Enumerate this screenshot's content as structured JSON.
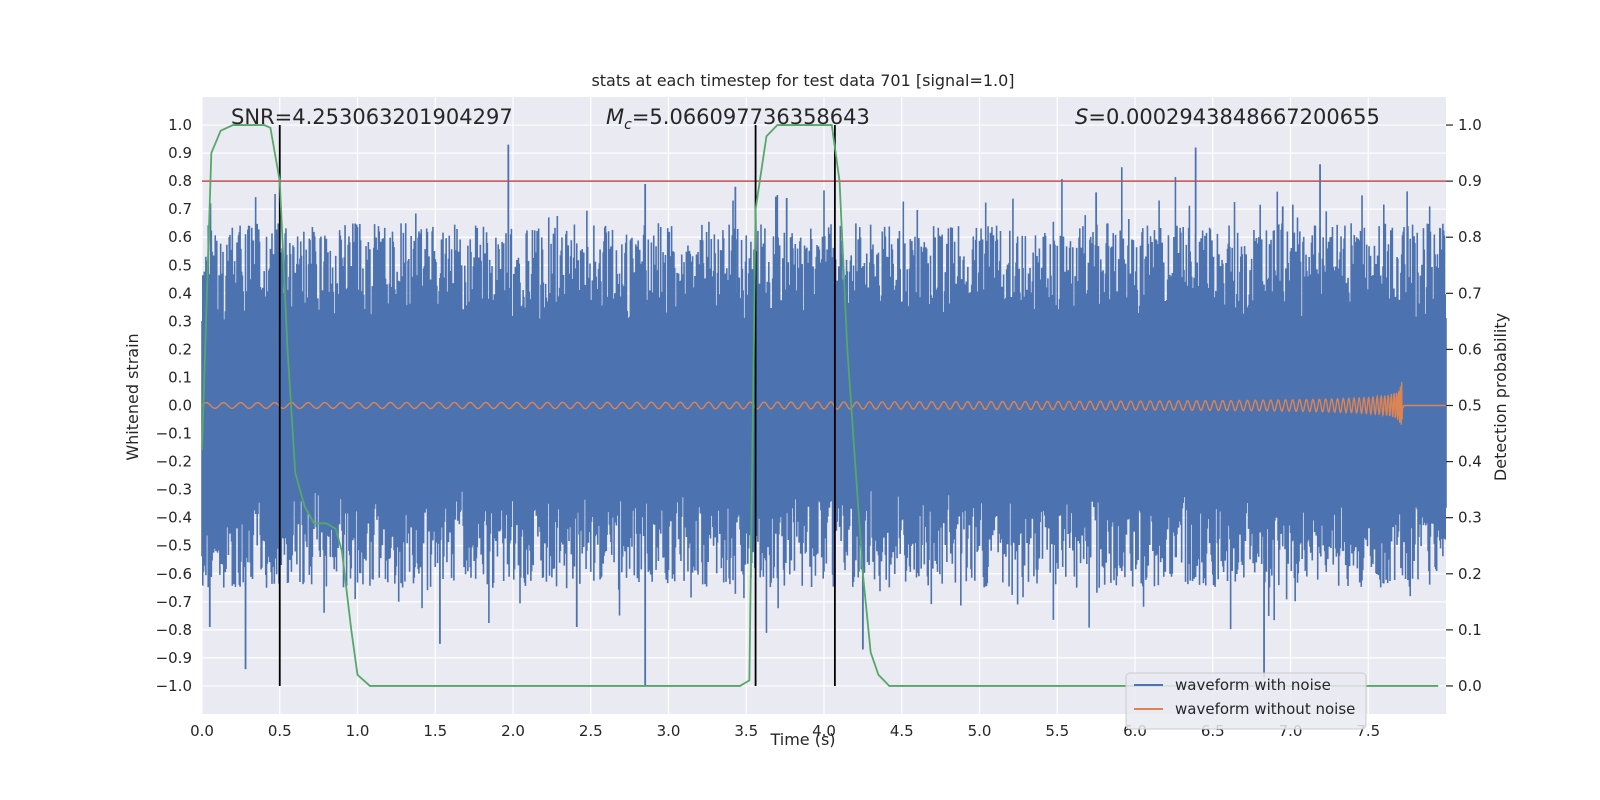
{
  "chart_data": {
    "type": "line",
    "title": "stats at each timestep for test data 701 [signal=1.0]",
    "xlabel": "Time (s)",
    "ylabel": "Whitened strain",
    "y2label": "Detection probability",
    "xlim": [
      0.0,
      8.0
    ],
    "ylim": [
      -1.1,
      1.1
    ],
    "y2lim": [
      -0.05,
      1.05
    ],
    "x_ticks": [
      0.0,
      0.5,
      1.0,
      1.5,
      2.0,
      2.5,
      3.0,
      3.5,
      4.0,
      4.5,
      5.0,
      5.5,
      6.0,
      6.5,
      7.0,
      7.5
    ],
    "x_tick_labels": [
      "0.0",
      "0.5",
      "1.0",
      "1.5",
      "2.0",
      "2.5",
      "3.0",
      "3.5",
      "4.0",
      "4.5",
      "5.0",
      "5.5",
      "6.0",
      "6.5",
      "7.0",
      "7.5"
    ],
    "y_ticks": [
      1.0,
      0.9,
      0.8,
      0.7,
      0.6,
      0.5,
      0.4,
      0.3,
      0.2,
      0.1,
      0.0,
      -0.1,
      -0.2,
      -0.3,
      -0.4,
      -0.5,
      -0.6,
      -0.7,
      -0.8,
      -0.9,
      -1.0
    ],
    "y_tick_labels": [
      "1.0",
      "0.9",
      "0.8",
      "0.7",
      "0.6",
      "0.5",
      "0.4",
      "0.3",
      "0.2",
      "0.1",
      "0.0",
      "−0.1",
      "−0.2",
      "−0.3",
      "−0.4",
      "−0.5",
      "−0.6",
      "−0.7",
      "−0.8",
      "−0.9",
      "−1.0"
    ],
    "y2_ticks": [
      1.0,
      0.9,
      0.8,
      0.7,
      0.6,
      0.5,
      0.4,
      0.3,
      0.2,
      0.1,
      0.0
    ],
    "y2_tick_labels": [
      "1.0",
      "0.9",
      "0.8",
      "0.7",
      "0.6",
      "0.5",
      "0.4",
      "0.3",
      "0.2",
      "0.1",
      "0.0"
    ],
    "grid": true,
    "annotations": {
      "snr": "SNR=4.253063201904297",
      "mc_symbol": "M",
      "mc_sub": "c",
      "mc_value": "=5.066097736358643",
      "s_symbol": "S",
      "s_value": "=0.0002943848667200655"
    },
    "threshold": {
      "axis": "y2",
      "value": 0.9,
      "color": "#c44e52"
    },
    "vertical_lines": [
      0.5,
      3.56,
      4.07
    ],
    "series": [
      {
        "name": "waveform with noise",
        "axis": "y",
        "color": "#4c72b0",
        "kind": "noise",
        "description_values": {
          "duration": 8.0,
          "typical_envelope": 0.45,
          "max": 0.93,
          "min": -1.0
        },
        "spikes": [
          {
            "t": 1.97,
            "v": 0.93
          },
          {
            "t": 6.39,
            "v": 0.92
          },
          {
            "t": 7.19,
            "v": 0.86
          },
          {
            "t": 2.85,
            "v": 0.79
          },
          {
            "t": 3.43,
            "v": 0.78
          },
          {
            "t": 5.75,
            "v": 0.76
          },
          {
            "t": 3.76,
            "v": 0.74
          },
          {
            "t": 6.95,
            "v": 0.71
          },
          {
            "t": 2.85,
            "v": -1.0
          },
          {
            "t": 6.83,
            "v": -0.97
          },
          {
            "t": 0.28,
            "v": -0.94
          },
          {
            "t": 4.25,
            "v": -0.87
          },
          {
            "t": 1.53,
            "v": -0.85
          },
          {
            "t": 2.41,
            "v": -0.79
          },
          {
            "t": 0.05,
            "v": -0.79
          }
        ]
      },
      {
        "name": "waveform without noise",
        "axis": "y",
        "color": "#dd8452",
        "kind": "chirp",
        "description_values": {
          "start_amplitude": 0.01,
          "peak_amplitude": 0.1,
          "merger_time": 7.72,
          "end_time": 8.0
        }
      },
      {
        "name": "detection probability",
        "axis": "y2",
        "color": "#55a868",
        "x": [
          0.0,
          0.06,
          0.12,
          0.2,
          0.3,
          0.4,
          0.44,
          0.5,
          0.55,
          0.6,
          0.66,
          0.72,
          0.8,
          0.86,
          0.9,
          0.96,
          1.0,
          1.08,
          1.2,
          3.0,
          3.46,
          3.52,
          3.56,
          3.63,
          3.7,
          3.9,
          4.05,
          4.1,
          4.15,
          4.2,
          4.25,
          4.3,
          4.35,
          4.42,
          5.0,
          6.0,
          7.0,
          7.95
        ],
        "y": [
          0.42,
          0.95,
          0.99,
          1.0,
          1.0,
          1.0,
          0.995,
          0.9,
          0.6,
          0.38,
          0.32,
          0.29,
          0.29,
          0.28,
          0.24,
          0.1,
          0.02,
          0.0,
          0.0,
          0.0,
          0.0,
          0.01,
          0.85,
          0.98,
          1.0,
          1.0,
          1.0,
          0.9,
          0.6,
          0.4,
          0.2,
          0.06,
          0.02,
          0.0,
          0.0,
          0.0,
          0.0,
          0.0
        ]
      }
    ],
    "legend": {
      "placement": "lower-right",
      "entries": [
        {
          "label": "waveform with noise",
          "color": "#4c72b0"
        },
        {
          "label": "waveform without noise",
          "color": "#dd8452"
        }
      ]
    }
  },
  "colors": {
    "axes_bg": "#eaeaf2",
    "grid": "#ffffff",
    "vline": "#000000"
  }
}
